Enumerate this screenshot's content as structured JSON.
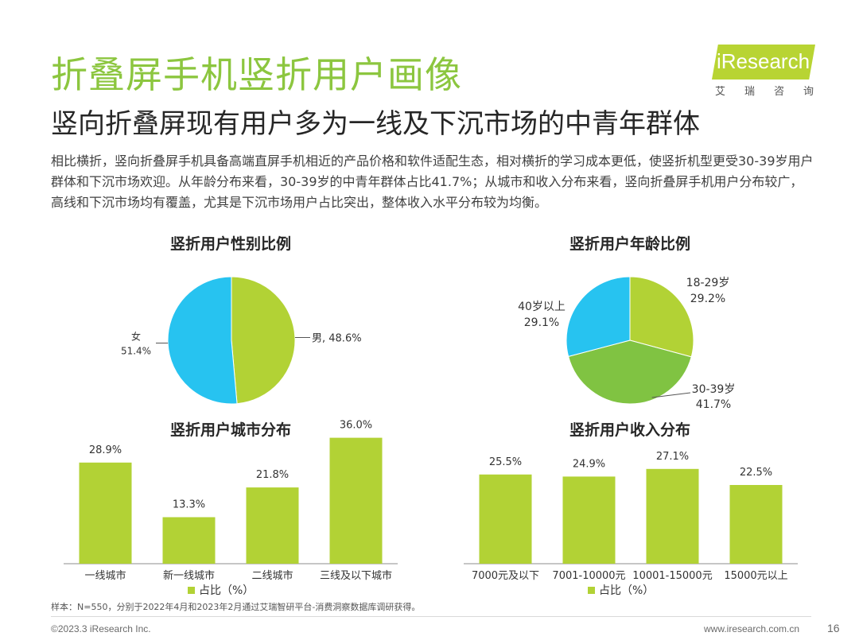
{
  "page": {
    "title": "折叠屏手机竖折用户画像",
    "subtitle": "竖向折叠屏现有用户多为一线及下沉市场的中青年群体",
    "intro": "相比横折，竖向折叠屏手机具备高端直屏手机相近的产品价格和软件适配生态，相对横折的学习成本更低，使竖折机型更受30-39岁用户群体和下沉市场欢迎。从年龄分布来看，30-39岁的中青年群体占比41.7%；从城市和收入分布来看，竖向折叠屏手机用户分布较广，高线和下沉市场均有覆盖，尤其是下沉市场用户占比突出，整体收入水平分布较为均衡。",
    "footnote": "样本：N=550，分别于2022年4月和2023年2月通过艾瑞智研平台-消费洞察数据库调研获得。",
    "copyright": "©2023.3 iResearch Inc.",
    "site": "www.iresearch.com.cn",
    "page_number": "16"
  },
  "logo": {
    "text": "iResearch",
    "chars": [
      "艾",
      "瑞",
      "咨",
      "询"
    ]
  },
  "colors": {
    "green": "#8cc63f",
    "bar_green": "#b2d235",
    "cyan": "#27c3f0",
    "age_green_light": "#b2d235",
    "age_green_mid": "#80c342"
  },
  "chart_data": [
    {
      "id": "gender",
      "type": "pie",
      "title": "竖折用户性别比例",
      "slices": [
        {
          "label": "男",
          "value": 48.6,
          "display": "男, 48.6%"
        },
        {
          "label": "女",
          "value": 51.4,
          "display_label": "女",
          "display_value": "51.4%"
        }
      ]
    },
    {
      "id": "age",
      "type": "pie",
      "title": "竖折用户年龄比例",
      "slices": [
        {
          "label": "18-29岁",
          "value": 29.2,
          "display_value": "29.2%"
        },
        {
          "label": "30-39岁",
          "value": 41.7,
          "display_value": "41.7%"
        },
        {
          "label": "40岁以上",
          "value": 29.1,
          "display_value": "29.1%"
        }
      ]
    },
    {
      "id": "city",
      "type": "bar",
      "title": "竖折用户城市分布",
      "categories": [
        "一线城市",
        "新一线城市",
        "二线城市",
        "三线及以下城市"
      ],
      "values": [
        28.9,
        13.3,
        21.8,
        36.0
      ],
      "data_labels": [
        "28.9%",
        "13.3%",
        "21.8%",
        "36.0%"
      ],
      "legend": "占比（%）",
      "ylim": [
        0,
        40
      ]
    },
    {
      "id": "income",
      "type": "bar",
      "title": "竖折用户收入分布",
      "categories": [
        "7000元及以下",
        "7001-10000元",
        "10001-15000元",
        "15000元以上"
      ],
      "values": [
        25.5,
        24.9,
        27.1,
        22.5
      ],
      "data_labels": [
        "25.5%",
        "24.9%",
        "27.1%",
        "22.5%"
      ],
      "legend": "占比（%）",
      "ylim": [
        0,
        40
      ]
    }
  ]
}
